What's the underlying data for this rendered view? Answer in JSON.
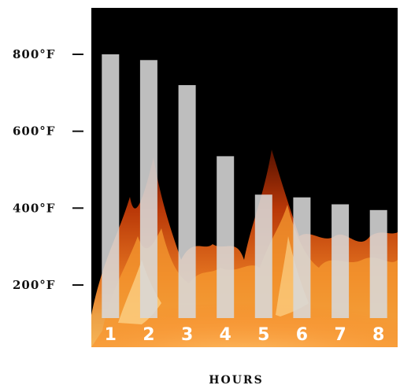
{
  "chart_data": {
    "type": "bar",
    "categories": [
      "1",
      "2",
      "3",
      "4",
      "5",
      "6",
      "7",
      "8"
    ],
    "values": [
      800,
      785,
      720,
      535,
      435,
      428,
      410,
      395
    ],
    "yticks": [
      {
        "value": 800,
        "label": "800°F"
      },
      {
        "value": 600,
        "label": "600°F"
      },
      {
        "value": 400,
        "label": "400°F"
      },
      {
        "value": 200,
        "label": "200°F"
      }
    ],
    "ylim": [
      115,
      890
    ],
    "xlabel": "HOURS",
    "background": "fire",
    "colors": {
      "bar": "#d8d8d8",
      "plot_background": "#000000",
      "flame_dark": "#8a1f00",
      "flame_mid": "#e0561a",
      "flame_bright": "#ffb347",
      "text": "#111111",
      "tick_text": "#ffffff"
    }
  }
}
